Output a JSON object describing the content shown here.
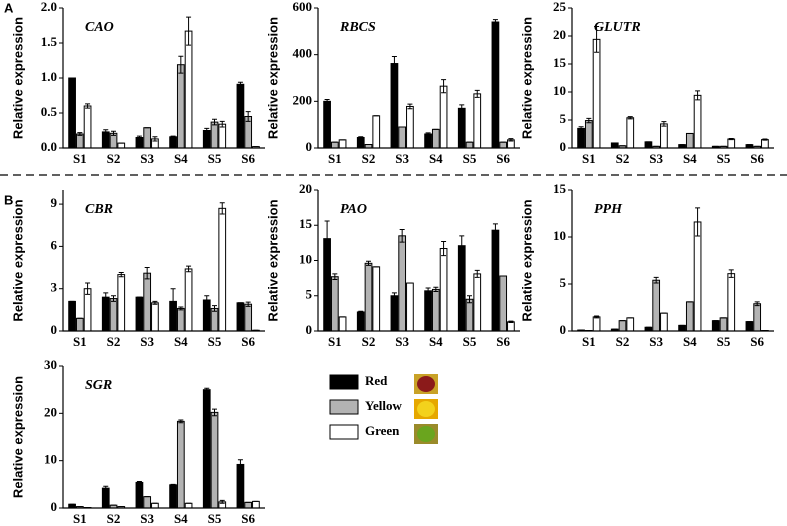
{
  "panel_labels": [
    "A",
    "B"
  ],
  "chart_data": [
    {
      "type": "bar",
      "title": "CAO",
      "y_label": "Relative expression",
      "categories": [
        "S1",
        "S2",
        "S3",
        "S4",
        "S5",
        "S6"
      ],
      "ylim": [
        0,
        2.0
      ],
      "yticks": [
        {
          "value": 0,
          "label": "0.0"
        },
        0.5,
        {
          "value": 1,
          "label": "1.0"
        },
        1.5,
        {
          "value": 2,
          "label": "2.0"
        }
      ],
      "series": [
        {
          "name": "Red",
          "color": "#000000",
          "values": [
            1.0,
            0.23,
            0.15,
            0.16,
            0.25,
            0.91
          ],
          "errors": [
            0,
            0.03,
            0.02,
            0.01,
            0.03,
            0.03
          ]
        },
        {
          "name": "Yellow",
          "color": "#b3b3b3",
          "values": [
            0.2,
            0.21,
            0.29,
            1.19,
            0.37,
            0.45
          ],
          "errors": [
            0.02,
            0.03,
            0,
            0.12,
            0.04,
            0.07
          ]
        },
        {
          "name": "Green",
          "color": "#ffffff",
          "values": [
            0.6,
            0.07,
            0.13,
            1.67,
            0.34,
            0.02
          ],
          "errors": [
            0.03,
            0,
            0.03,
            0.2,
            0.04,
            0
          ]
        }
      ]
    },
    {
      "type": "bar",
      "title": "RBCS",
      "y_label": "Relative expression",
      "categories": [
        "S1",
        "S2",
        "S3",
        "S4",
        "S5",
        "S6"
      ],
      "ylim": [
        0,
        600
      ],
      "yticks": [
        0,
        200,
        400,
        600
      ],
      "series": [
        {
          "name": "Red",
          "color": "#000000",
          "values": [
            200,
            45,
            362,
            60,
            170,
            540
          ],
          "errors": [
            8,
            3,
            30,
            5,
            15,
            10
          ]
        },
        {
          "name": "Yellow",
          "color": "#b3b3b3",
          "values": [
            25,
            15,
            90,
            80,
            25,
            25
          ],
          "errors": [
            0,
            0,
            0,
            0,
            0,
            0
          ]
        },
        {
          "name": "Green",
          "color": "#ffffff",
          "values": [
            35,
            138,
            178,
            265,
            232,
            35
          ],
          "errors": [
            0,
            0,
            10,
            28,
            15,
            5
          ]
        }
      ]
    },
    {
      "type": "bar",
      "title": "GLUTR",
      "y_label": "Relative expression",
      "categories": [
        "S1",
        "S2",
        "S3",
        "S4",
        "S5",
        "S6"
      ],
      "ylim": [
        0,
        25
      ],
      "yticks": [
        0,
        5,
        10,
        15,
        20,
        25
      ],
      "series": [
        {
          "name": "Red",
          "color": "#000000",
          "values": [
            3.5,
            0.9,
            1.1,
            0.6,
            0.3,
            0.6
          ],
          "errors": [
            0.3,
            0,
            0,
            0,
            0,
            0
          ]
        },
        {
          "name": "Yellow",
          "color": "#b3b3b3",
          "values": [
            4.9,
            0.4,
            0.3,
            2.6,
            0.3,
            0.3
          ],
          "errors": [
            0.4,
            0,
            0,
            0,
            0,
            0
          ]
        },
        {
          "name": "Green",
          "color": "#ffffff",
          "values": [
            19.4,
            5.4,
            4.3,
            9.4,
            1.6,
            1.5
          ],
          "errors": [
            2.3,
            0.2,
            0.4,
            0.8,
            0.1,
            0.1
          ]
        }
      ]
    },
    {
      "type": "bar",
      "title": "CBR",
      "y_label": "Relative expression",
      "categories": [
        "S1",
        "S2",
        "S3",
        "S4",
        "S5",
        "S6"
      ],
      "ylim": [
        0,
        10
      ],
      "yticks": [
        0,
        3,
        6,
        9
      ],
      "series": [
        {
          "name": "Red",
          "color": "#000000",
          "values": [
            2.1,
            2.4,
            2.4,
            2.1,
            2.2,
            2.0
          ],
          "errors": [
            0,
            0.3,
            0,
            0.9,
            0.3,
            0
          ]
        },
        {
          "name": "Yellow",
          "color": "#b3b3b3",
          "values": [
            0.9,
            2.3,
            4.1,
            1.6,
            1.6,
            1.9
          ],
          "errors": [
            0,
            0.2,
            0.4,
            0.1,
            0.2,
            0.15
          ]
        },
        {
          "name": "Green",
          "color": "#ffffff",
          "values": [
            3.0,
            4.0,
            2.0,
            4.4,
            8.7,
            0.05
          ],
          "errors": [
            0.4,
            0.15,
            0.1,
            0.2,
            0.4,
            0
          ]
        }
      ]
    },
    {
      "type": "bar",
      "title": "PAO",
      "y_label": "Relative expression",
      "categories": [
        "S1",
        "S2",
        "S3",
        "S4",
        "S5",
        "S6"
      ],
      "ylim": [
        0,
        20
      ],
      "yticks": [
        0,
        5,
        10,
        15,
        20
      ],
      "series": [
        {
          "name": "Red",
          "color": "#000000",
          "values": [
            13.1,
            2.7,
            5.0,
            5.7,
            12.1,
            14.3
          ],
          "errors": [
            2.5,
            0.1,
            0.4,
            0.4,
            1.4,
            0.9
          ]
        },
        {
          "name": "Yellow",
          "color": "#b3b3b3",
          "values": [
            7.7,
            9.6,
            13.5,
            5.9,
            4.5,
            7.8
          ],
          "errors": [
            0.4,
            0.3,
            0.9,
            0.3,
            0.5,
            0
          ]
        },
        {
          "name": "Green",
          "color": "#ffffff",
          "values": [
            2.0,
            9.1,
            6.8,
            11.7,
            8.1,
            1.3
          ],
          "errors": [
            0,
            0,
            0,
            1.0,
            0.5,
            0.1
          ]
        }
      ]
    },
    {
      "type": "bar",
      "title": "PPH",
      "y_label": "Relative expression",
      "categories": [
        "S1",
        "S2",
        "S3",
        "S4",
        "S5",
        "S6"
      ],
      "ylim": [
        0,
        15
      ],
      "yticks": [
        0,
        5,
        10,
        15
      ],
      "series": [
        {
          "name": "Red",
          "color": "#000000",
          "values": [
            0.1,
            0.2,
            0.4,
            0.6,
            1.1,
            1.0
          ],
          "errors": [
            0,
            0,
            0,
            0,
            0,
            0
          ]
        },
        {
          "name": "Yellow",
          "color": "#b3b3b3",
          "values": [
            0.05,
            1.1,
            5.4,
            3.1,
            1.4,
            2.9
          ],
          "errors": [
            0,
            0,
            0.3,
            0,
            0,
            0.2
          ]
        },
        {
          "name": "Green",
          "color": "#ffffff",
          "values": [
            1.5,
            1.4,
            1.9,
            11.6,
            6.1,
            0.05
          ],
          "errors": [
            0.1,
            0,
            0,
            1.5,
            0.4,
            0
          ]
        }
      ]
    },
    {
      "type": "bar",
      "title": "SGR",
      "y_label": "Relative expression",
      "categories": [
        "S1",
        "S2",
        "S3",
        "S4",
        "S5",
        "S6"
      ],
      "ylim": [
        0,
        30
      ],
      "yticks": [
        0,
        10,
        20,
        30
      ],
      "series": [
        {
          "name": "Red",
          "color": "#000000",
          "values": [
            0.8,
            4.2,
            5.4,
            4.9,
            25.0,
            9.2
          ],
          "errors": [
            0,
            0.4,
            0.2,
            0.1,
            0.3,
            1.0
          ]
        },
        {
          "name": "Yellow",
          "color": "#b3b3b3",
          "values": [
            0.3,
            0.6,
            2.4,
            18.3,
            20.2,
            1.2
          ],
          "errors": [
            0,
            0,
            0,
            0.3,
            0.7,
            0
          ]
        },
        {
          "name": "Green",
          "color": "#ffffff",
          "values": [
            0.1,
            0.3,
            1.0,
            1.0,
            1.3,
            1.4
          ],
          "errors": [
            0,
            0,
            0,
            0,
            0.3,
            0
          ]
        }
      ]
    }
  ]
}
